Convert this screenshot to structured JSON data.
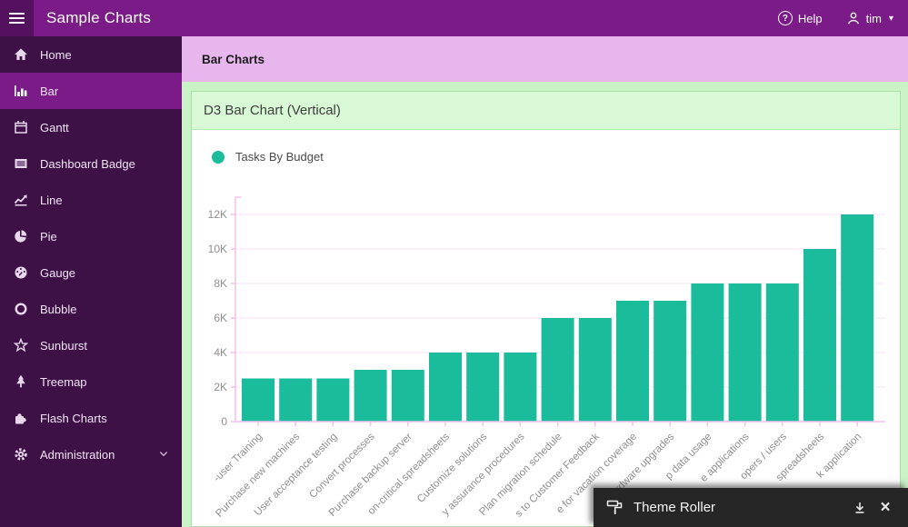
{
  "header": {
    "title": "Sample Charts",
    "help_label": "Help",
    "user_name": "tim",
    "caret": "▾"
  },
  "sidebar": {
    "items": [
      {
        "label": "Home",
        "icon": "home-icon",
        "selected": false
      },
      {
        "label": "Bar",
        "icon": "bar-chart-icon",
        "selected": true
      },
      {
        "label": "Gantt",
        "icon": "calendar-icon",
        "selected": false
      },
      {
        "label": "Dashboard Badge",
        "icon": "list-box-icon",
        "selected": false
      },
      {
        "label": "Line",
        "icon": "line-chart-icon",
        "selected": false
      },
      {
        "label": "Pie",
        "icon": "pie-chart-icon",
        "selected": false
      },
      {
        "label": "Gauge",
        "icon": "gauge-icon",
        "selected": false
      },
      {
        "label": "Bubble",
        "icon": "circle-icon",
        "selected": false
      },
      {
        "label": "Sunburst",
        "icon": "star-icon",
        "selected": false
      },
      {
        "label": "Treemap",
        "icon": "tree-icon",
        "selected": false
      },
      {
        "label": "Flash Charts",
        "icon": "puzzle-icon",
        "selected": false
      },
      {
        "label": "Administration",
        "icon": "gear-icon",
        "selected": false,
        "has_submenu": true
      }
    ]
  },
  "breadcrumb": {
    "title": "Bar Charts"
  },
  "panel": {
    "title": "D3 Bar Chart (Vertical)"
  },
  "legend": {
    "label": "Tasks By Budget",
    "color": "#1abc9c"
  },
  "chart_data": {
    "type": "bar",
    "title": "D3 Bar Chart (Vertical)",
    "series_name": "Tasks By Budget",
    "categories": [
      "-user Training",
      "Purchase new machines",
      "User acceptance testing",
      "Convert processes",
      "Purchase backup server",
      "on-critical spreadsheets",
      "Customize solutions",
      "y assurance procedures",
      "Plan migration schedule",
      "s to Customer Feedback",
      "e for vacation coverage",
      "Hardware upgrades",
      "p data usage",
      "e applications",
      "opers / users",
      "spreadsheets",
      "k application"
    ],
    "values": [
      2500,
      2500,
      2500,
      3000,
      3000,
      4000,
      4000,
      4000,
      6000,
      6000,
      7000,
      7000,
      8000,
      8000,
      8000,
      10000,
      12000
    ],
    "y_ticks": [
      "0",
      "2K",
      "4K",
      "6K",
      "8K",
      "10K",
      "12K"
    ],
    "ylim": [
      0,
      13000
    ],
    "xlabel": "",
    "ylabel": "",
    "grid": "on",
    "legend_position": "top-left",
    "bar_color": "#1abc9c",
    "grid_color": "#fae6fa",
    "axis_color": "#f0bfee",
    "label_color": "#8f8f8f"
  },
  "theme_roller": {
    "title": "Theme Roller"
  }
}
